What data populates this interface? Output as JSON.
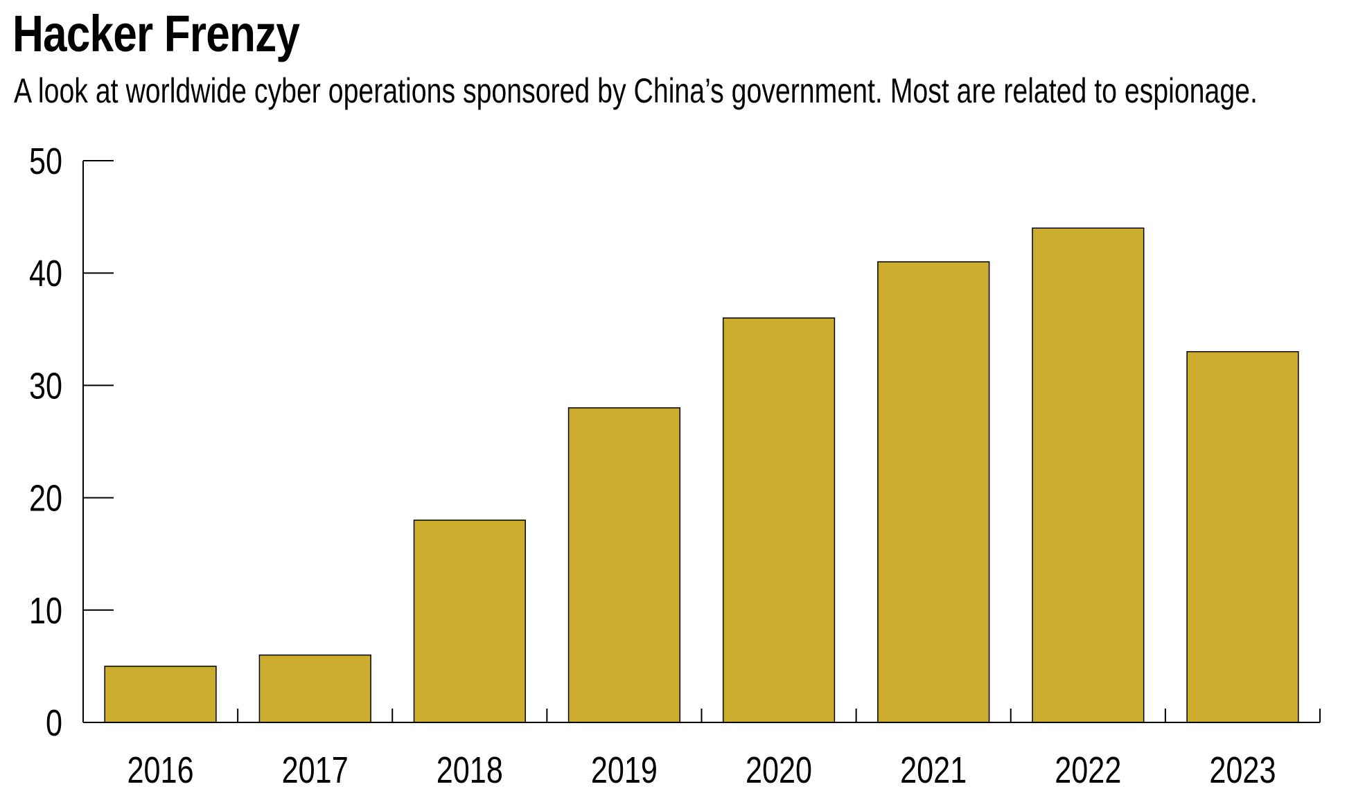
{
  "title": "Hacker Frenzy",
  "subtitle": "A look at worldwide cyber operations sponsored by China’s government. Most are related to espionage.",
  "colors": {
    "bar_fill": "#CBAC2C",
    "axis": "#000000",
    "background": "#FFFFFF"
  },
  "chart_data": {
    "type": "bar",
    "title": "Hacker Frenzy",
    "subtitle": "A look at worldwide cyber operations sponsored by China’s government. Most are related to espionage.",
    "categories": [
      "2016",
      "2017",
      "2018",
      "2019",
      "2020",
      "2021",
      "2022",
      "2023"
    ],
    "values": [
      5,
      6,
      18,
      28,
      36,
      41,
      44,
      33
    ],
    "xlabel": "",
    "ylabel": "",
    "ylim": [
      0,
      50
    ],
    "yticks": [
      "0",
      "10",
      "20",
      "30",
      "40",
      "50"
    ],
    "grid": false,
    "legend": "none"
  }
}
